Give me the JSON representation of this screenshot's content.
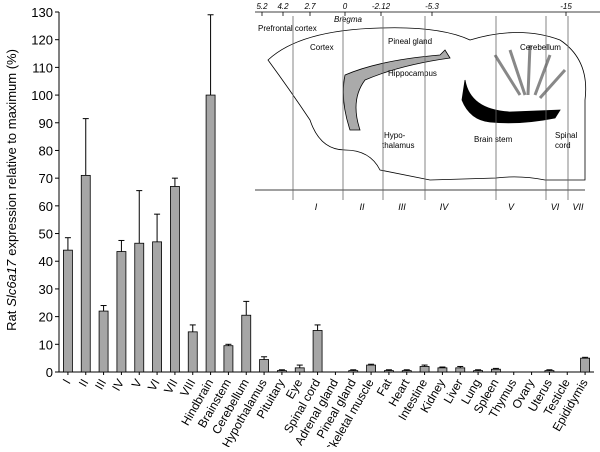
{
  "chart_data": {
    "type": "bar",
    "ylabel": [
      "Rat",
      "Slc6a17",
      "expression relative to maximum (%)"
    ],
    "categories": [
      "I",
      "II",
      "III",
      "IV",
      "V",
      "VI",
      "VII",
      "VIII",
      "Hindbrain",
      "Brainstem",
      "Cerebellum",
      "Hypothalamus",
      "Pituitary",
      "Eye",
      "Spinal cord",
      "Adrenal gland",
      "Pineal gland",
      "Skeletal muscle",
      "Fat",
      "Heart",
      "Intestine",
      "Kidney",
      "Liver",
      "Lung",
      "Spleen",
      "Thymus",
      "Ovary",
      "Uterus",
      "Testicle",
      "Epididymis"
    ],
    "values": [
      44,
      71,
      22,
      43.5,
      46.5,
      47,
      67,
      14.5,
      100,
      9.5,
      20.5,
      4.5,
      0.5,
      1.5,
      15,
      0,
      0.5,
      2.5,
      0.5,
      0.5,
      2,
      1.5,
      1.5,
      0.5,
      1,
      0,
      0,
      0.5,
      0,
      5
    ],
    "errors": [
      4.5,
      20.5,
      2,
      4,
      19,
      10,
      3,
      2.5,
      29,
      0.5,
      5,
      1,
      0.3,
      1,
      2,
      0,
      0.3,
      0.3,
      0.3,
      0.3,
      0.5,
      0.3,
      0.5,
      0.3,
      0.3,
      0,
      0,
      0.3,
      0,
      0.3
    ],
    "color": "#a6a6a6",
    "ylim": [
      0,
      130
    ],
    "yticks": [
      0,
      10,
      20,
      30,
      40,
      50,
      60,
      70,
      80,
      90,
      100,
      110,
      120,
      130
    ],
    "inset": {
      "bregma_label": "Bregma",
      "bregma_ticks": [
        "5.2",
        "4.2",
        "2.7",
        "0",
        "-2.12",
        "-5.3",
        "-15"
      ],
      "regions": [
        "Prefrontal cortex",
        "Cortex",
        "Pineal gland",
        "Hippocampus",
        "Cerebellum",
        "Hypo-",
        "thalamus",
        "Brain stem",
        "Spinal",
        "cord"
      ],
      "sections": [
        "I",
        "II",
        "III",
        "IV",
        "V",
        "VI",
        "VII"
      ]
    }
  }
}
